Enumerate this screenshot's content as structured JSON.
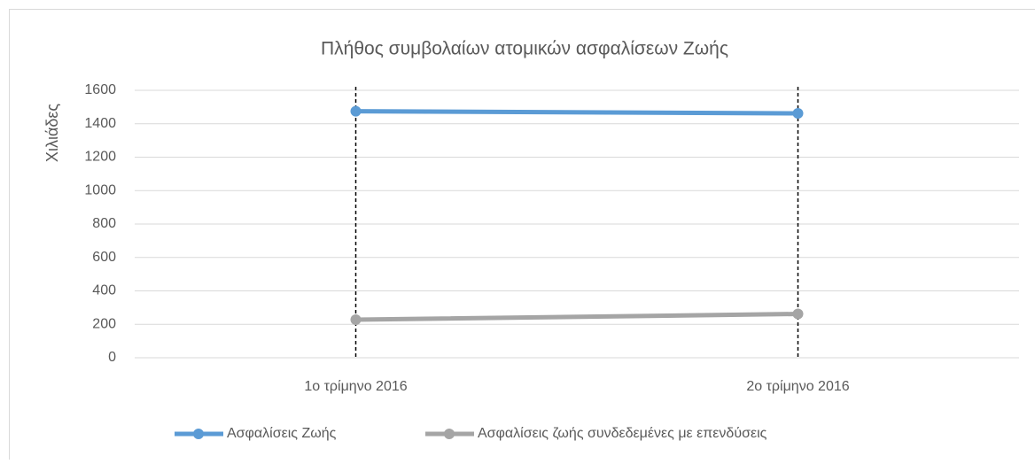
{
  "chart_data": {
    "type": "line",
    "title": "Πλήθος συμβολαίων ατομικών ασφαλίσεων Ζωής",
    "y_label": "Χιλιάδες",
    "categories": [
      "1ο τρίμηνο 2016",
      "2ο τρίμηνο 2016"
    ],
    "series": [
      {
        "name": "Ασφαλίσεις Ζωής",
        "color": "#5b9bd5",
        "values": [
          1475,
          1462
        ]
      },
      {
        "name": "Ασφαλίσεις ζωής συνδεδεμένες με επενδύσεις",
        "color": "#a5a5a5",
        "values": [
          228,
          262
        ]
      }
    ],
    "ylim": [
      0,
      1600
    ],
    "yticks": [
      0,
      200,
      400,
      600,
      800,
      1000,
      1200,
      1400,
      1600
    ],
    "grid": true,
    "legend": "bottom"
  }
}
